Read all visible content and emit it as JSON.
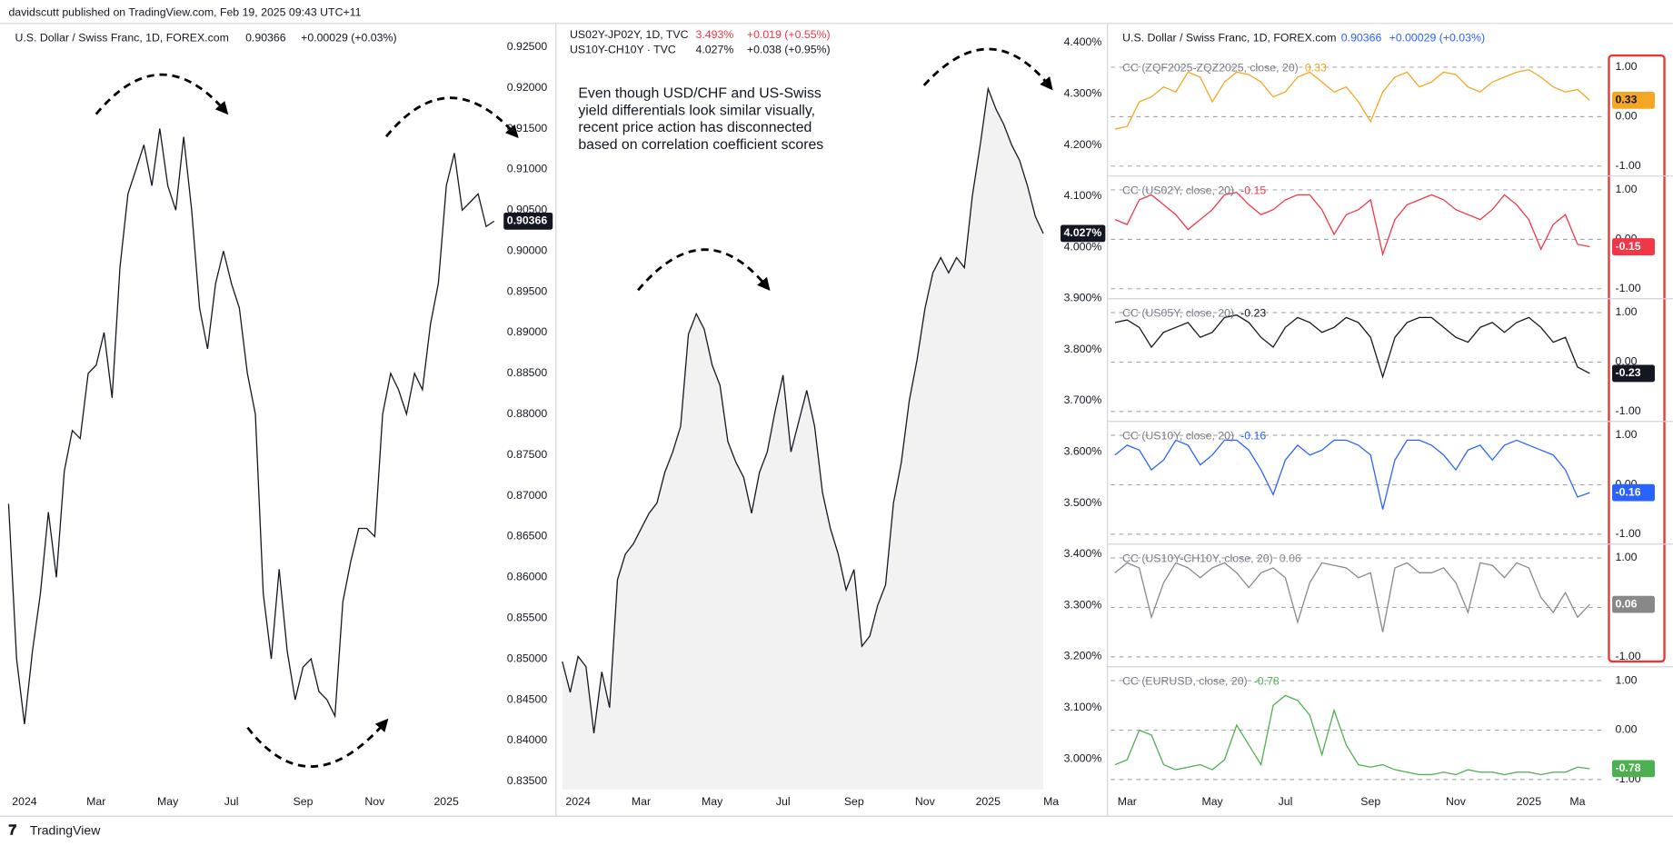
{
  "page": {
    "byline": "davidscutt published on TradingView.com, Feb 19, 2025 09:43 UTC+11",
    "brand": "TradingView"
  },
  "chart_data": [
    {
      "type": "line",
      "color": "#131722",
      "grid": false,
      "legend": {
        "symbol": "U.S. Dollar / Swiss Franc, 1D, FOREX.com",
        "change": "+0.00029 (+0.03%)"
      },
      "categories": [
        null,
        null,
        "2024",
        null,
        null,
        null,
        null,
        null,
        null,
        null,
        null,
        "Mar",
        null,
        null,
        null,
        null,
        null,
        null,
        null,
        null,
        "May",
        null,
        null,
        null,
        null,
        null,
        null,
        null,
        "Jul",
        null,
        null,
        null,
        null,
        null,
        null,
        null,
        null,
        "Sep",
        null,
        null,
        null,
        null,
        null,
        null,
        null,
        null,
        "Nov",
        null,
        null,
        null,
        null,
        null,
        null,
        null,
        null,
        "2025",
        null,
        null,
        null,
        null,
        null,
        null
      ],
      "values": [
        0.869,
        0.85,
        0.842,
        0.851,
        0.858,
        0.868,
        0.86,
        0.873,
        0.878,
        0.877,
        0.885,
        0.886,
        0.89,
        0.882,
        0.898,
        0.907,
        0.91,
        0.913,
        0.908,
        0.915,
        0.908,
        0.905,
        0.914,
        0.905,
        0.893,
        0.888,
        0.896,
        0.9,
        0.896,
        0.893,
        0.885,
        0.88,
        0.858,
        0.85,
        0.861,
        0.851,
        0.845,
        0.849,
        0.85,
        0.846,
        0.845,
        0.843,
        0.857,
        0.862,
        0.866,
        0.866,
        0.865,
        0.88,
        0.885,
        0.883,
        0.88,
        0.885,
        0.883,
        0.891,
        0.896,
        0.908,
        0.912,
        0.905,
        0.906,
        0.907,
        0.903,
        0.90366
      ],
      "ylim": [
        0.834,
        0.9271
      ],
      "yticks": [
        {
          "value": 0.835,
          "label": "0.83500"
        },
        {
          "value": 0.84,
          "label": "0.84000"
        },
        {
          "value": 0.845,
          "label": "0.84500"
        },
        {
          "value": 0.85,
          "label": "0.85000"
        },
        {
          "value": 0.855,
          "label": "0.85500"
        },
        {
          "value": 0.86,
          "label": "0.86000"
        },
        {
          "value": 0.865,
          "label": "0.86500"
        },
        {
          "value": 0.87,
          "label": "0.87000"
        },
        {
          "value": 0.875,
          "label": "0.87500"
        },
        {
          "value": 0.88,
          "label": "0.88000"
        },
        {
          "value": 0.885,
          "label": "0.88500"
        },
        {
          "value": 0.89,
          "label": "0.89000"
        },
        {
          "value": 0.895,
          "label": "0.89500"
        },
        {
          "value": 0.9,
          "label": "0.90000"
        },
        {
          "value": 0.905,
          "label": "0.90500"
        },
        {
          "value": 0.91,
          "label": "0.91000"
        },
        {
          "value": 0.915,
          "label": "0.91500"
        },
        {
          "value": 0.92,
          "label": "0.92000"
        },
        {
          "value": 0.925,
          "label": "0.92500"
        }
      ]
    },
    {
      "type": "area",
      "color": "#131722",
      "fill": "#f2f2f2",
      "grid": false,
      "legend": [
        {
          "symbol": "US02Y-JP02Y, 1D, TVC",
          "price": "3.493%",
          "change": "+0.019 (+0.55%)",
          "color": "#f23645"
        },
        {
          "symbol": "US10Y-CH10Y · TVC",
          "price": "4.027%",
          "change": "+0.038 (+0.95%)",
          "color": "#131722"
        }
      ],
      "annotation": [
        "Even though USD/CHF and US-Swiss",
        "yield differentials look similar visually,",
        "recent price action has disconnected",
        "based on correlation coefficient scores"
      ],
      "categories": [
        null,
        null,
        "2024",
        null,
        null,
        null,
        null,
        null,
        null,
        null,
        "Mar",
        null,
        null,
        null,
        null,
        null,
        null,
        null,
        null,
        "May",
        null,
        null,
        null,
        null,
        null,
        null,
        null,
        null,
        "Jul",
        null,
        null,
        null,
        null,
        null,
        null,
        null,
        null,
        "Sep",
        null,
        null,
        null,
        null,
        null,
        null,
        null,
        null,
        "Nov",
        null,
        null,
        null,
        null,
        null,
        null,
        null,
        "2025",
        null,
        null,
        null,
        null,
        null,
        null,
        null,
        "Ma"
      ],
      "values": [
        3.19,
        3.13,
        3.2,
        3.18,
        3.05,
        3.17,
        3.1,
        3.35,
        3.4,
        3.42,
        3.45,
        3.48,
        3.5,
        3.56,
        3.6,
        3.65,
        3.83,
        3.87,
        3.84,
        3.77,
        3.73,
        3.62,
        3.58,
        3.55,
        3.48,
        3.56,
        3.6,
        3.68,
        3.75,
        3.6,
        3.66,
        3.72,
        3.65,
        3.52,
        3.45,
        3.4,
        3.33,
        3.37,
        3.22,
        3.24,
        3.3,
        3.34,
        3.5,
        3.58,
        3.7,
        3.78,
        3.88,
        3.95,
        3.98,
        3.95,
        3.98,
        3.96,
        4.1,
        4.2,
        4.31,
        4.27,
        4.24,
        4.2,
        4.17,
        4.12,
        4.06,
        4.027,
        null
      ],
      "ylim": [
        2.94,
        4.425
      ],
      "yticks": [
        {
          "value": 3.0,
          "label": "3.000%"
        },
        {
          "value": 3.1,
          "label": "3.100%"
        },
        {
          "value": 3.2,
          "label": "3.200%"
        },
        {
          "value": 3.3,
          "label": "3.300%"
        },
        {
          "value": 3.4,
          "label": "3.400%"
        },
        {
          "value": 3.5,
          "label": "3.500%"
        },
        {
          "value": 3.6,
          "label": "3.600%"
        },
        {
          "value": 3.7,
          "label": "3.700%"
        },
        {
          "value": 3.8,
          "label": "3.800%"
        },
        {
          "value": 3.9,
          "label": "3.900%"
        },
        {
          "value": 4.0,
          "label": "4.000%"
        },
        {
          "value": 4.1,
          "label": "4.100%"
        },
        {
          "value": 4.2,
          "label": "4.200%"
        },
        {
          "value": 4.3,
          "label": "4.300%"
        },
        {
          "value": 4.4,
          "label": "4.400%"
        }
      ]
    },
    {
      "type": "panes",
      "grid": true,
      "legend": {
        "symbol": "U.S. Dollar / Swiss Franc, 1D, FOREX.com",
        "price": "0.90366",
        "change": "+0.00029 (+0.03%)"
      },
      "categories": [
        null,
        "Mar",
        null,
        null,
        null,
        null,
        null,
        null,
        "May",
        null,
        null,
        null,
        null,
        null,
        "Jul",
        null,
        null,
        null,
        null,
        null,
        null,
        "Sep",
        null,
        null,
        null,
        null,
        null,
        null,
        "Nov",
        null,
        null,
        null,
        null,
        null,
        "2025",
        null,
        null,
        null,
        "Ma",
        null
      ],
      "ylim": [
        -1.2,
        1.28
      ],
      "yticks": [
        {
          "value": 1,
          "label": "1.00"
        },
        {
          "value": 0,
          "label": "0.00"
        },
        {
          "value": -1,
          "label": "-1.00"
        }
      ],
      "series": [
        {
          "name": "CC (ZQF2025-ZQZ2025, close, 20)",
          "color": "#f5a623",
          "values": [
            -0.25,
            -0.2,
            0.3,
            0.4,
            0.6,
            0.5,
            0.9,
            0.8,
            0.3,
            0.7,
            0.9,
            0.85,
            0.7,
            0.4,
            0.5,
            0.8,
            0.9,
            0.7,
            0.5,
            0.6,
            0.3,
            -0.1,
            0.5,
            0.8,
            0.9,
            0.6,
            0.7,
            0.9,
            0.85,
            0.6,
            0.5,
            0.7,
            0.8,
            0.9,
            0.95,
            0.8,
            0.6,
            0.5,
            0.55,
            0.33
          ]
        },
        {
          "name": "CC (US02Y, close, 20)",
          "color": "#f23645",
          "values": [
            0.4,
            0.3,
            0.8,
            0.9,
            0.7,
            0.5,
            0.2,
            0.4,
            0.6,
            0.9,
            0.95,
            0.7,
            0.5,
            0.6,
            0.8,
            0.9,
            0.9,
            0.6,
            0.1,
            0.5,
            0.6,
            0.8,
            -0.3,
            0.4,
            0.7,
            0.8,
            0.9,
            0.8,
            0.6,
            0.5,
            0.4,
            0.6,
            0.9,
            0.7,
            0.4,
            -0.2,
            0.3,
            0.5,
            -0.1,
            -0.15
          ]
        },
        {
          "name": "CC (US05Y, close, 20)",
          "color": "#131722",
          "values": [
            0.8,
            0.85,
            0.7,
            0.3,
            0.6,
            0.7,
            0.8,
            0.5,
            0.6,
            0.9,
            0.95,
            0.8,
            0.5,
            0.3,
            0.7,
            0.9,
            0.8,
            0.6,
            0.7,
            0.9,
            0.8,
            0.5,
            -0.3,
            0.5,
            0.8,
            0.9,
            0.9,
            0.7,
            0.5,
            0.4,
            0.7,
            0.8,
            0.6,
            0.8,
            0.9,
            0.7,
            0.4,
            0.5,
            -0.1,
            -0.23
          ]
        },
        {
          "name": "CC (US10Y, close, 20)",
          "color": "#2962ff",
          "values": [
            0.6,
            0.8,
            0.7,
            0.3,
            0.5,
            0.9,
            0.8,
            0.4,
            0.6,
            0.9,
            0.9,
            0.7,
            0.3,
            -0.2,
            0.5,
            0.8,
            0.6,
            0.7,
            0.9,
            0.9,
            0.8,
            0.6,
            -0.5,
            0.5,
            0.9,
            0.9,
            0.8,
            0.6,
            0.3,
            0.7,
            0.8,
            0.5,
            0.8,
            0.9,
            0.8,
            0.7,
            0.6,
            0.3,
            -0.25,
            -0.16
          ]
        },
        {
          "name": "CC (US10Y-CH10Y, close, 20)",
          "color": "#888888",
          "values": [
            0.7,
            0.9,
            0.8,
            -0.2,
            0.5,
            0.9,
            0.8,
            0.6,
            0.8,
            0.9,
            0.7,
            0.4,
            0.7,
            0.8,
            0.6,
            -0.3,
            0.5,
            0.9,
            0.85,
            0.8,
            0.6,
            0.7,
            -0.5,
            0.8,
            0.9,
            0.7,
            0.7,
            0.8,
            0.5,
            -0.1,
            0.9,
            0.85,
            0.6,
            0.9,
            0.8,
            0.2,
            -0.1,
            0.3,
            -0.2,
            0.06
          ]
        },
        {
          "name": "CC (EURUSD, close, 20)",
          "color": "#4caf50",
          "values": [
            -0.7,
            -0.6,
            0.0,
            -0.1,
            -0.7,
            -0.8,
            -0.75,
            -0.7,
            -0.8,
            -0.6,
            0.1,
            -0.3,
            -0.7,
            0.5,
            0.7,
            0.6,
            0.3,
            -0.5,
            0.4,
            -0.3,
            -0.7,
            -0.75,
            -0.7,
            -0.8,
            -0.85,
            -0.9,
            -0.9,
            -0.85,
            -0.9,
            -0.8,
            -0.85,
            -0.85,
            -0.9,
            -0.85,
            -0.85,
            -0.9,
            -0.85,
            -0.85,
            -0.75,
            -0.78
          ]
        }
      ]
    }
  ]
}
